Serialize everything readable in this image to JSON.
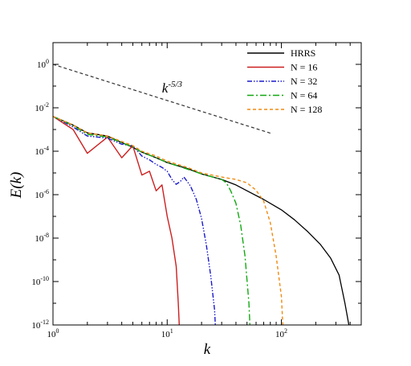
{
  "chart_data": {
    "type": "line",
    "title": "",
    "xlabel": "k",
    "ylabel": "E(k)",
    "xscale": "log",
    "yscale": "log",
    "xlim": [
      1,
      500
    ],
    "ylim": [
      1e-12,
      10
    ],
    "grid": false,
    "legend_position": "top-right",
    "x_tick_labels": [
      {
        "value": 1,
        "base": "10",
        "exp": "0"
      },
      {
        "value": 10,
        "base": "10",
        "exp": "1"
      },
      {
        "value": 100,
        "base": "10",
        "exp": "2"
      }
    ],
    "y_tick_labels": [
      {
        "value": 1,
        "base": "10",
        "exp": "0"
      },
      {
        "value": 0.01,
        "base": "10",
        "exp": "-2"
      },
      {
        "value": 0.0001,
        "base": "10",
        "exp": "-4"
      },
      {
        "value": 1e-06,
        "base": "10",
        "exp": "-6"
      },
      {
        "value": 1e-08,
        "base": "10",
        "exp": "-8"
      },
      {
        "value": 1e-10,
        "base": "10",
        "exp": "-10"
      },
      {
        "value": 1e-12,
        "base": "10",
        "exp": "-12"
      }
    ],
    "annotation": {
      "base": "k",
      "exp": "-5/3",
      "x": 9,
      "y": 0.05,
      "line": {
        "x": [
          1,
          80
        ],
        "y": [
          1.0,
          0.00068
        ]
      }
    },
    "series": [
      {
        "name": "HRRS",
        "color": "#000000",
        "dash": "solid",
        "x": [
          1,
          1.5,
          2,
          3,
          4,
          5,
          6,
          8,
          10,
          15,
          20,
          30,
          40,
          50,
          70,
          100,
          130,
          170,
          220,
          270,
          320,
          360,
          390,
          410
        ],
        "y": [
          0.004,
          0.0016,
          0.0007,
          0.0005,
          0.00025,
          0.00015,
          9e-05,
          5e-05,
          3e-05,
          1.6e-05,
          9e-06,
          5e-06,
          2.8e-06,
          1.5e-06,
          6e-07,
          2e-07,
          7e-08,
          2e-08,
          5e-09,
          1.2e-09,
          2e-10,
          1e-11,
          1e-12,
          1e-13
        ]
      },
      {
        "name": "N = 16",
        "color": "#cc1f1f",
        "dash": "solid",
        "x": [
          1,
          1.5,
          2,
          3,
          4,
          5,
          6,
          7,
          8,
          9,
          10,
          11,
          12,
          12.5,
          13
        ],
        "y": [
          0.004,
          0.001,
          8e-05,
          0.00045,
          5e-05,
          0.00018,
          8e-06,
          1.2e-05,
          1.5e-06,
          2.8e-06,
          1e-07,
          1e-08,
          5e-10,
          1e-11,
          1e-13
        ]
      },
      {
        "name": "N = 32",
        "color": "#1a1acc",
        "dash": "6,2,1.5,2,1.5,2",
        "x": [
          1,
          1.5,
          2,
          3,
          4,
          5,
          6,
          7,
          8,
          9,
          10,
          11,
          12,
          13,
          14,
          15,
          16,
          18,
          20,
          22,
          24,
          26,
          27
        ],
        "y": [
          0.004,
          0.0013,
          0.0005,
          0.0004,
          0.00021,
          0.00018,
          6e-05,
          4e-05,
          2.5e-05,
          1.8e-05,
          1.2e-05,
          5e-06,
          3e-06,
          4e-06,
          6.5e-06,
          4e-06,
          2.5e-06,
          6e-07,
          8e-08,
          5e-09,
          2e-10,
          5e-12,
          1e-13
        ]
      },
      {
        "name": "N = 64",
        "color": "#12a812",
        "dash": "8,3,2,3",
        "x": [
          1,
          1.5,
          2,
          3,
          4,
          5,
          6,
          8,
          10,
          15,
          20,
          25,
          30,
          33,
          36,
          40,
          44,
          48,
          52,
          54
        ],
        "y": [
          0.004,
          0.0015,
          0.0006,
          0.00045,
          0.00025,
          0.00016,
          9e-05,
          5e-05,
          3e-05,
          1.5e-05,
          9e-06,
          6.5e-06,
          5e-06,
          3.5e-06,
          1.5e-06,
          4e-07,
          4e-08,
          1.5e-09,
          1e-11,
          1e-13
        ]
      },
      {
        "name": "N = 128",
        "color": "#f08a10",
        "dash": "4,3",
        "x": [
          1,
          1.5,
          2,
          3,
          4,
          5,
          6,
          8,
          10,
          15,
          20,
          30,
          40,
          50,
          60,
          70,
          80,
          90,
          100,
          105
        ],
        "y": [
          0.004,
          0.0016,
          0.0007,
          0.0005,
          0.00028,
          0.00018,
          0.0001,
          6e-05,
          3.5e-05,
          1.8e-05,
          1e-05,
          6.5e-06,
          5e-06,
          3.5e-06,
          1.6e-06,
          5e-07,
          5e-08,
          1.5e-09,
          2e-11,
          1e-13
        ]
      }
    ]
  }
}
